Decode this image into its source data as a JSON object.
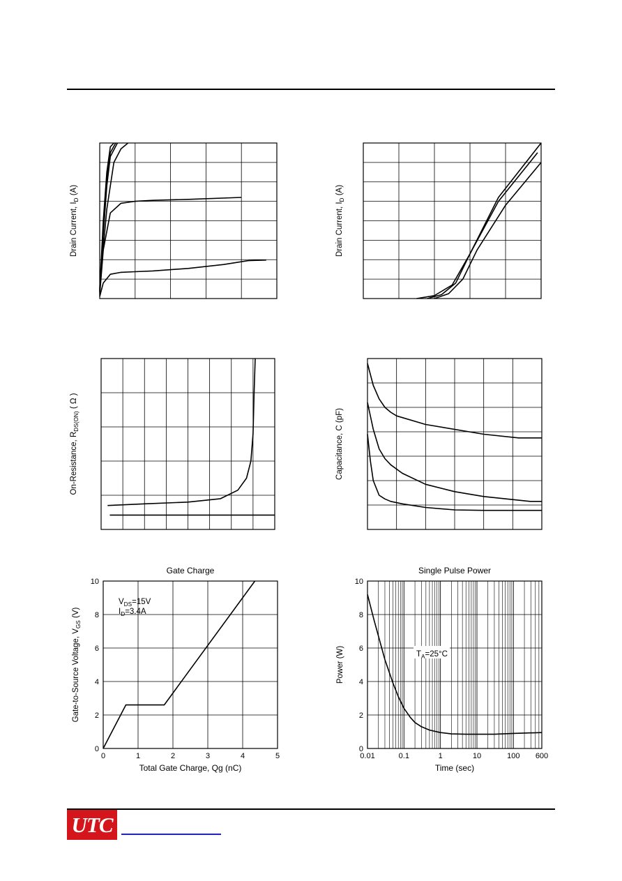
{
  "page": {
    "logo_text": "UTC",
    "colors": {
      "logo": "#d4151b",
      "link": "#1a1aff"
    }
  },
  "charts": [
    {
      "id": "output",
      "type": "line",
      "ylabel_main": "Drain Current, I",
      "ylabel_sub": "D",
      "ylabel_unit": " (A)",
      "xlim": [
        0,
        5
      ],
      "ylim": [
        0,
        8
      ],
      "grid": true,
      "series": [
        {
          "x": [
            0,
            0.05,
            0.1,
            0.2,
            0.3,
            0.4
          ],
          "y": [
            0.5,
            2.2,
            4.0,
            6.5,
            7.8,
            8.0
          ]
        },
        {
          "x": [
            0,
            0.05,
            0.1,
            0.2,
            0.3,
            0.45
          ],
          "y": [
            0.4,
            2.0,
            3.6,
            6.2,
            7.5,
            8.0
          ]
        },
        {
          "x": [
            0,
            0.05,
            0.1,
            0.2,
            0.3,
            0.5
          ],
          "y": [
            0.35,
            1.8,
            3.3,
            5.8,
            7.3,
            8.0
          ]
        },
        {
          "x": [
            0,
            0.1,
            0.2,
            0.4,
            0.6,
            0.8
          ],
          "y": [
            0.3,
            2.6,
            4.6,
            7.0,
            7.7,
            8.0
          ]
        },
        {
          "x": [
            0,
            0.1,
            0.3,
            0.6,
            1.0,
            1.5,
            2.5,
            4.0
          ],
          "y": [
            0.2,
            2.5,
            4.4,
            4.9,
            5.0,
            5.05,
            5.1,
            5.2
          ]
        },
        {
          "x": [
            0,
            0.1,
            0.3,
            0.6,
            1.0,
            1.5,
            2.5,
            3.5,
            4.2,
            4.7
          ],
          "y": [
            0.1,
            0.8,
            1.25,
            1.35,
            1.38,
            1.42,
            1.55,
            1.75,
            1.95,
            1.98
          ]
        }
      ]
    },
    {
      "id": "transfer",
      "type": "line",
      "ylabel_main": "Drain Current, I",
      "ylabel_sub": "D",
      "ylabel_unit": " (A)",
      "xlim": [
        0,
        5
      ],
      "ylim": [
        0,
        8
      ],
      "grid": true,
      "series": [
        {
          "x": [
            1.5,
            2.0,
            2.5,
            3.0,
            3.8,
            5.0
          ],
          "y": [
            0,
            0.15,
            0.7,
            2.3,
            5.2,
            8.0
          ]
        },
        {
          "x": [
            1.8,
            2.2,
            2.6,
            3.0,
            3.8,
            4.9
          ],
          "y": [
            0,
            0.2,
            0.8,
            2.3,
            5.0,
            7.5
          ]
        },
        {
          "x": [
            2.0,
            2.4,
            2.8,
            3.2,
            4.0,
            5.0
          ],
          "y": [
            0,
            0.25,
            1.0,
            2.5,
            4.8,
            7.0
          ]
        }
      ]
    },
    {
      "id": "on-resistance",
      "type": "line",
      "ylabel_main": "On-Resistance, R",
      "ylabel_sub": "DS(ON)",
      "ylabel_unit": " ( Ω )",
      "xlim": [
        0,
        8
      ],
      "ylim": [
        0,
        5
      ],
      "grid": true,
      "series": [
        {
          "x": [
            0.3,
            2.0,
            4.0,
            5.5,
            6.3,
            6.7,
            6.9,
            7.0,
            7.05,
            7.1
          ],
          "y": [
            0.7,
            0.75,
            0.8,
            0.9,
            1.15,
            1.5,
            2.0,
            2.8,
            4.0,
            5.0
          ]
        },
        {
          "x": [
            0.4,
            8.0
          ],
          "y": [
            0.42,
            0.42
          ]
        }
      ]
    },
    {
      "id": "capacitance",
      "type": "line",
      "ylabel_main": "Capacitance,  C (pF)",
      "ylabel_sub": "",
      "ylabel_unit": "",
      "xlim": [
        0,
        30
      ],
      "ylim": [
        0,
        7
      ],
      "grid": true,
      "series": [
        {
          "x": [
            0,
            1,
            2,
            3,
            4,
            5,
            10,
            20,
            26,
            30
          ],
          "y": [
            6.8,
            5.9,
            5.35,
            5.0,
            4.8,
            4.65,
            4.3,
            3.9,
            3.75,
            3.75
          ]
        },
        {
          "x": [
            0,
            1,
            2,
            3,
            4,
            6,
            10,
            15,
            20,
            28,
            30
          ],
          "y": [
            5.2,
            4.1,
            3.3,
            2.9,
            2.65,
            2.3,
            1.85,
            1.55,
            1.35,
            1.15,
            1.15
          ]
        },
        {
          "x": [
            0,
            0.5,
            1,
            2,
            3,
            4,
            6,
            10,
            15,
            20,
            30
          ],
          "y": [
            3.9,
            2.8,
            2.0,
            1.4,
            1.25,
            1.15,
            1.05,
            0.9,
            0.8,
            0.78,
            0.78
          ]
        }
      ]
    },
    {
      "id": "gate-charge",
      "type": "line",
      "title": "Gate Charge",
      "xlabel": "Total Gate Charge, Qg (nC)",
      "ylabel_main": "Gate-to-Source Voltage, V",
      "ylabel_sub": "GS",
      "ylabel_unit": " (V)",
      "annotation_line1_main": "V",
      "annotation_line1_sub": "DS",
      "annotation_line1_val": "=15V",
      "annotation_line2_main": "I",
      "annotation_line2_sub": "D",
      "annotation_line2_val": "=3.4A",
      "xlim": [
        0,
        5
      ],
      "ylim": [
        0,
        10
      ],
      "grid": true,
      "xticks": [
        0,
        1,
        2,
        3,
        4,
        5
      ],
      "yticks": [
        0,
        2,
        4,
        6,
        8,
        10
      ],
      "xtick_labels": [
        "0",
        "1",
        "2",
        "3",
        "4",
        "5"
      ],
      "ytick_labels": [
        "0",
        "2",
        "4",
        "6",
        "8",
        "10"
      ],
      "series": [
        {
          "x": [
            0,
            0.65,
            1.75,
            4.35
          ],
          "y": [
            0,
            2.6,
            2.6,
            10
          ]
        }
      ]
    },
    {
      "id": "single-pulse",
      "type": "line",
      "title": "Single Pulse Power",
      "xlabel": "Time (sec)",
      "ylabel_main": "Power (W)",
      "ylabel_sub": "",
      "ylabel_unit": "",
      "annotation_main": "T",
      "annotation_sub": "A",
      "annotation_val": "=25°C",
      "xscale": "log",
      "xlim": [
        0.01,
        600
      ],
      "ylim": [
        0,
        10
      ],
      "grid": true,
      "xticks": [
        0.01,
        0.1,
        1,
        10,
        100,
        600
      ],
      "yticks": [
        0,
        2,
        4,
        6,
        8,
        10
      ],
      "xtick_labels": [
        "0.01",
        "0.1",
        "1",
        "10",
        "100",
        "600"
      ],
      "ytick_labels": [
        "0",
        "2",
        "4",
        "6",
        "8",
        "10"
      ],
      "series": [
        {
          "x": [
            0.01,
            0.015,
            0.02,
            0.03,
            0.05,
            0.07,
            0.1,
            0.15,
            0.2,
            0.3,
            0.5,
            1,
            2,
            5,
            10,
            30,
            100,
            600
          ],
          "y": [
            9.2,
            7.7,
            6.7,
            5.3,
            3.9,
            3.1,
            2.4,
            1.85,
            1.55,
            1.3,
            1.1,
            0.95,
            0.87,
            0.85,
            0.85,
            0.85,
            0.9,
            0.95
          ]
        }
      ]
    }
  ]
}
